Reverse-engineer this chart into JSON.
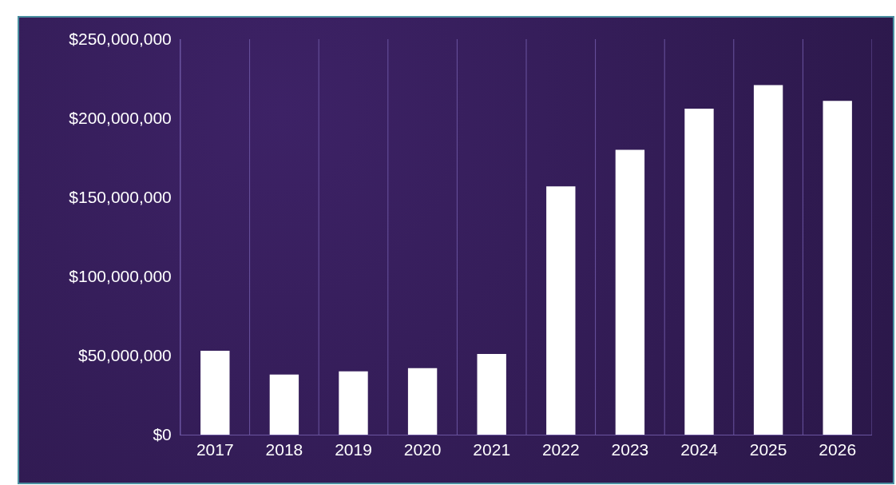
{
  "chart_data": {
    "type": "bar",
    "categories": [
      "2017",
      "2018",
      "2019",
      "2020",
      "2021",
      "2022",
      "2023",
      "2024",
      "2025",
      "2026"
    ],
    "values": [
      53000000,
      38000000,
      40000000,
      42000000,
      51000000,
      157000000,
      180000000,
      206000000,
      221000000,
      211000000
    ],
    "color": "#ffffff",
    "ylim": [
      0,
      250000000
    ],
    "yticks": [
      {
        "value": 0,
        "label": "$0"
      },
      {
        "value": 50000000,
        "label": "$50,000,000"
      },
      {
        "value": 100000000,
        "label": "$100,000,000"
      },
      {
        "value": 150000000,
        "label": "$150,000,000"
      },
      {
        "value": 200000000,
        "label": "$200,000,000"
      },
      {
        "value": 250000000,
        "label": "$250,000,000"
      }
    ],
    "grid": "x"
  }
}
